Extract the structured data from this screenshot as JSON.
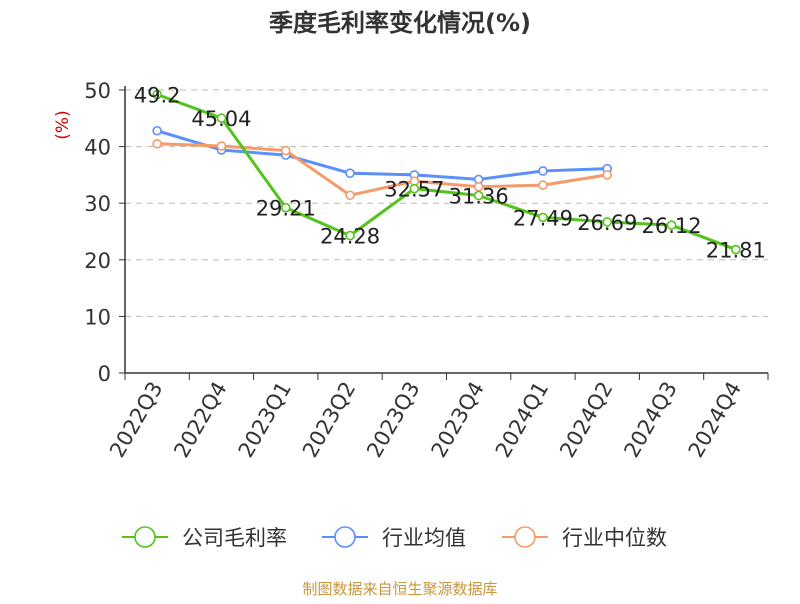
{
  "chart_data": {
    "type": "line",
    "title": "季度毛利率变化情况(%)",
    "ylabel": "(%)",
    "xlabel": "",
    "categories": [
      "2022Q3",
      "2022Q4",
      "2023Q1",
      "2023Q2",
      "2023Q3",
      "2023Q4",
      "2024Q1",
      "2024Q2",
      "2024Q3",
      "2024Q4"
    ],
    "ylim": [
      0,
      50
    ],
    "yticks": [
      "0",
      "10",
      "20",
      "30",
      "40",
      "50"
    ],
    "grid": true,
    "legend_position": "bottom",
    "series": [
      {
        "name": "公司毛利率",
        "color": "#52c41a",
        "values": [
          49.2,
          45.04,
          29.21,
          24.28,
          32.57,
          31.36,
          27.49,
          26.69,
          26.12,
          21.81
        ],
        "labels": [
          "49.2",
          "45.04",
          "29.21",
          "24.28",
          "32.57",
          "31.36",
          "27.49",
          "26.69",
          "26.12",
          "21.81"
        ]
      },
      {
        "name": "行业均值",
        "color": "#5b8ff9",
        "values": [
          42.8,
          39.4,
          38.5,
          35.3,
          35.0,
          34.2,
          35.7,
          36.1,
          null,
          null
        ]
      },
      {
        "name": "行业中位数",
        "color": "#f59a6b",
        "values": [
          40.5,
          40.1,
          39.3,
          31.4,
          33.9,
          32.9,
          33.2,
          35.0,
          null,
          null
        ]
      }
    ]
  },
  "footer": {
    "source": "制图数据来自恒生聚源数据库"
  }
}
